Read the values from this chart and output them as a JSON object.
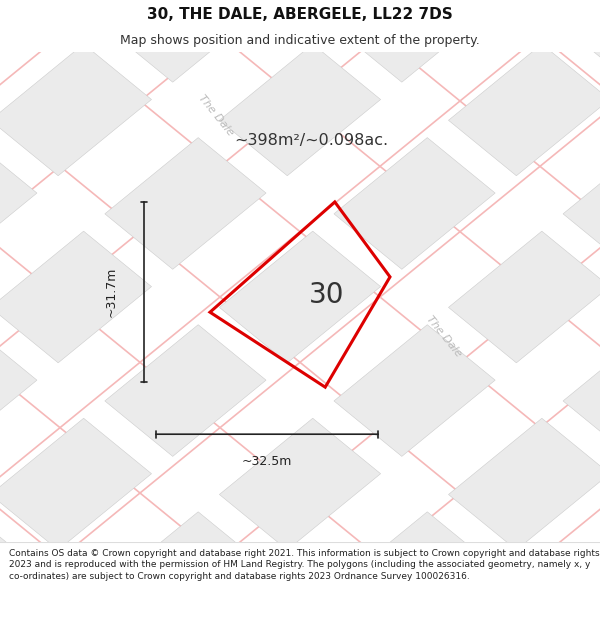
{
  "title": "30, THE DALE, ABERGELE, LL22 7DS",
  "subtitle": "Map shows position and indicative extent of the property.",
  "footer": "Contains OS data © Crown copyright and database right 2021. This information is subject to Crown copyright and database rights 2023 and is reproduced with the permission of HM Land Registry. The polygons (including the associated geometry, namely x, y co-ordinates) are subject to Crown copyright and database rights 2023 Ordnance Survey 100026316.",
  "area_label": "~398m²/~0.098ac.",
  "width_label": "~32.5m",
  "height_label": "~31.7m",
  "plot_number": "30",
  "map_bg": "#ffffff",
  "plot_fill": "none",
  "plot_edge": "#dd0000",
  "road_label_color": "#bbbbbb",
  "building_fill": "#ebebeb",
  "building_edge": "#cccccc",
  "road_line_color": "#f5b8b8",
  "dim_line_color": "#222222",
  "figsize": [
    6.0,
    6.25
  ],
  "dpi": 100,
  "title_fontsize": 11,
  "subtitle_fontsize": 9,
  "footer_fontsize": 6.5
}
